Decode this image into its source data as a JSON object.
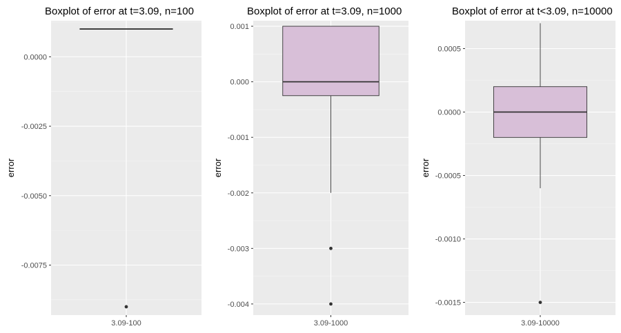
{
  "colors": {
    "panel_background": "#ebebeb",
    "grid_major": "#ffffff",
    "grid_minor": "#f5f5f5",
    "box_fill": "#d8bfd8",
    "box_stroke": "#333333",
    "outlier": "#333333"
  },
  "chart_data": [
    {
      "type": "box",
      "title": "Boxplot of error at t=3.09, n=100",
      "ylabel": "error",
      "category": "3.09-100",
      "ylim": [
        -0.0093,
        0.0013
      ],
      "yticks": [
        0.0,
        -0.0025,
        -0.005,
        -0.0075
      ],
      "ytick_labels": [
        "0.0000",
        "-0.0025",
        "-0.0050",
        "-0.0075"
      ],
      "box": {
        "lower_whisker": 0.001,
        "q1": 0.001,
        "median": 0.001,
        "q3": 0.001,
        "upper_whisker": 0.001
      },
      "outliers": [
        -0.009
      ],
      "grid": true
    },
    {
      "type": "box",
      "title": "Boxplot of error at t=3.09, n=1000",
      "ylabel": "error",
      "category": "3.09-1000",
      "ylim": [
        -0.0042,
        0.0011
      ],
      "yticks": [
        0.001,
        0.0,
        -0.001,
        -0.002,
        -0.003,
        -0.004
      ],
      "ytick_labels": [
        "0.001",
        "0.000",
        "-0.001",
        "-0.002",
        "-0.003",
        "-0.004"
      ],
      "box": {
        "lower_whisker": -0.002,
        "q1": -0.00025,
        "median": 0.0,
        "q3": 0.001,
        "upper_whisker": 0.001
      },
      "outliers": [
        -0.003,
        -0.004
      ],
      "grid": true
    },
    {
      "type": "box",
      "title": "Boxplot of error at t<3.09, n=10000",
      "ylabel": "error",
      "category": "3.09-10000",
      "ylim": [
        -0.0016,
        0.00072
      ],
      "yticks": [
        0.0005,
        0.0,
        -0.0005,
        -0.001,
        -0.0015
      ],
      "ytick_labels": [
        "0.0005",
        "0.0000",
        "-0.0005",
        "-0.0010",
        "-0.0015"
      ],
      "box": {
        "lower_whisker": -0.0006,
        "q1": -0.0002,
        "median": 0.0,
        "q3": 0.0002,
        "upper_whisker": 0.0007
      },
      "outliers": [
        -0.0015
      ],
      "grid": true
    }
  ]
}
